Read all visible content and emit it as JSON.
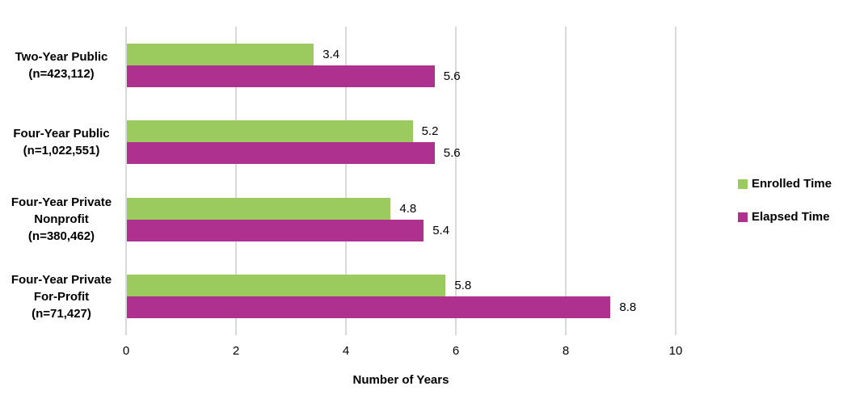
{
  "chart_data": {
    "type": "bar",
    "orientation": "horizontal",
    "title": "",
    "categories": [
      {
        "lines": [
          "Two-Year Public",
          "(n=423,112)"
        ]
      },
      {
        "lines": [
          "Four-Year Public",
          "(n=1,022,551)"
        ]
      },
      {
        "lines": [
          "Four-Year Private",
          "Nonprofit",
          "(n=380,462)"
        ]
      },
      {
        "lines": [
          "Four-Year Private",
          "For-Profit",
          "(n=71,427)"
        ]
      }
    ],
    "series": [
      {
        "name": "Enrolled Time",
        "color": "#9BCB5F",
        "values": [
          3.4,
          5.2,
          4.8,
          5.8
        ]
      },
      {
        "name": "Elapsed Time",
        "color": "#AE3190",
        "values": [
          5.6,
          5.6,
          5.4,
          8.8
        ]
      }
    ],
    "xlabel": "Number of Years",
    "xlim": [
      0,
      10
    ],
    "xticks": [
      0,
      2,
      4,
      6,
      8,
      10
    ],
    "grid": "vertical",
    "gridline_color": "#D9D9D9",
    "legend_position": "right",
    "value_labels_shown": true,
    "text_color": "#000000"
  }
}
